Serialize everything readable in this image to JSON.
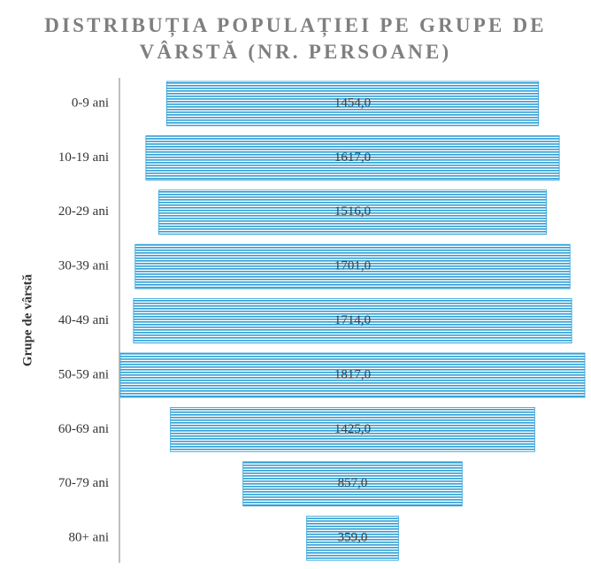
{
  "chart_data": {
    "type": "bar",
    "orientation": "centered-horizontal",
    "title": "DISTRIBUȚIA POPULAȚIEI PE GRUPE DE VÂRSTĂ (NR. PERSOANE)",
    "y_label": "Grupe de vârstă",
    "categories": [
      "0-9 ani",
      "10-19 ani",
      "20-29 ani",
      "30-39 ani",
      "40-49 ani",
      "50-59 ani",
      "60-69 ani",
      "70-79 ani",
      "80+ ani"
    ],
    "values": [
      1454,
      1617,
      1516,
      1701,
      1714,
      1817,
      1425,
      857,
      359
    ],
    "value_labels": [
      "1454,0",
      "1617,0",
      "1516,0",
      "1701,0",
      "1714,0",
      "1817,0",
      "1425,0",
      "857,0",
      "359,0"
    ],
    "color": "#2f9fd6"
  }
}
